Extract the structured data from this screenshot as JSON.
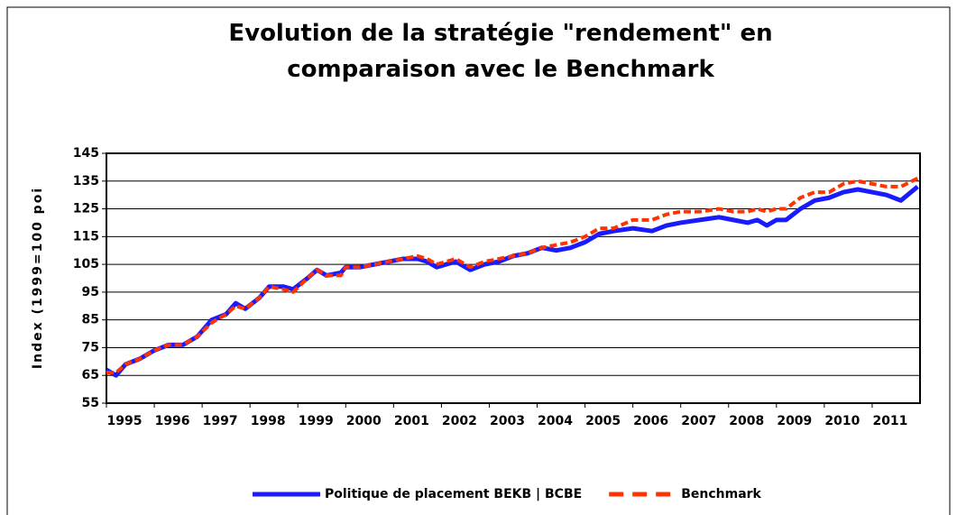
{
  "chart_data": {
    "type": "line",
    "title_lines": [
      "Evolution de la stratégie \"rendement\" en",
      "comparaison avec le Benchmark"
    ],
    "y_label": "Index (1999=100 poi",
    "x": [
      1995.0,
      1995.2,
      1995.4,
      1995.7,
      1996.0,
      1996.3,
      1996.6,
      1996.9,
      1997.2,
      1997.5,
      1997.7,
      1997.9,
      1998.2,
      1998.4,
      1998.7,
      1998.9,
      1999.2,
      1999.4,
      1999.6,
      1999.9,
      2000.0,
      2000.3,
      2000.6,
      2000.9,
      2001.2,
      2001.5,
      2001.7,
      2001.9,
      2002.3,
      2002.6,
      2002.9,
      2003.2,
      2003.5,
      2003.8,
      2004.1,
      2004.4,
      2004.7,
      2005.0,
      2005.3,
      2005.6,
      2006.0,
      2006.4,
      2006.7,
      2007.0,
      2007.4,
      2007.8,
      2008.1,
      2008.4,
      2008.6,
      2008.8,
      2009.0,
      2009.2,
      2009.5,
      2009.8,
      2010.1,
      2010.4,
      2010.7,
      2011.0,
      2011.3,
      2011.6,
      2011.95
    ],
    "series": [
      {
        "name": "Politique de placement BEKB | BCBE",
        "color": "#1a1aff",
        "dash": false,
        "values": [
          67,
          65,
          69,
          71,
          74,
          76,
          76,
          79,
          85,
          87,
          91,
          89,
          93,
          97,
          97,
          96,
          100,
          103,
          101,
          102,
          104,
          104,
          105,
          106,
          107,
          107,
          106,
          104,
          106,
          103,
          105,
          106,
          108,
          109,
          111,
          110,
          111,
          113,
          116,
          117,
          118,
          117,
          119,
          120,
          121,
          122,
          121,
          120,
          121,
          119,
          121,
          121,
          125,
          128,
          129,
          131,
          132,
          131,
          130,
          128,
          133
        ]
      },
      {
        "name": "Benchmark",
        "color": "#ff3300",
        "dash": true,
        "values": [
          66,
          66,
          69,
          71,
          74,
          76,
          76,
          79,
          84,
          87,
          90,
          89,
          93,
          97,
          96,
          95,
          100,
          103,
          101,
          101,
          104,
          104,
          105,
          106,
          107,
          108,
          107,
          105,
          107,
          104,
          106,
          107,
          108,
          109,
          111,
          112,
          113,
          115,
          118,
          118,
          121,
          121,
          123,
          124,
          124,
          125,
          124,
          124,
          125,
          124,
          125,
          125,
          129,
          131,
          131,
          134,
          135,
          134,
          133,
          133,
          136
        ]
      }
    ],
    "xlim": [
      1995,
      2012
    ],
    "xticks": [
      1995,
      1996,
      1997,
      1998,
      1999,
      2000,
      2001,
      2002,
      2003,
      2004,
      2005,
      2006,
      2007,
      2008,
      2009,
      2010,
      2011
    ],
    "ylim": [
      55,
      145
    ],
    "yticks": [
      55,
      65,
      75,
      85,
      95,
      105,
      115,
      125,
      135,
      145
    ],
    "grid": true
  }
}
